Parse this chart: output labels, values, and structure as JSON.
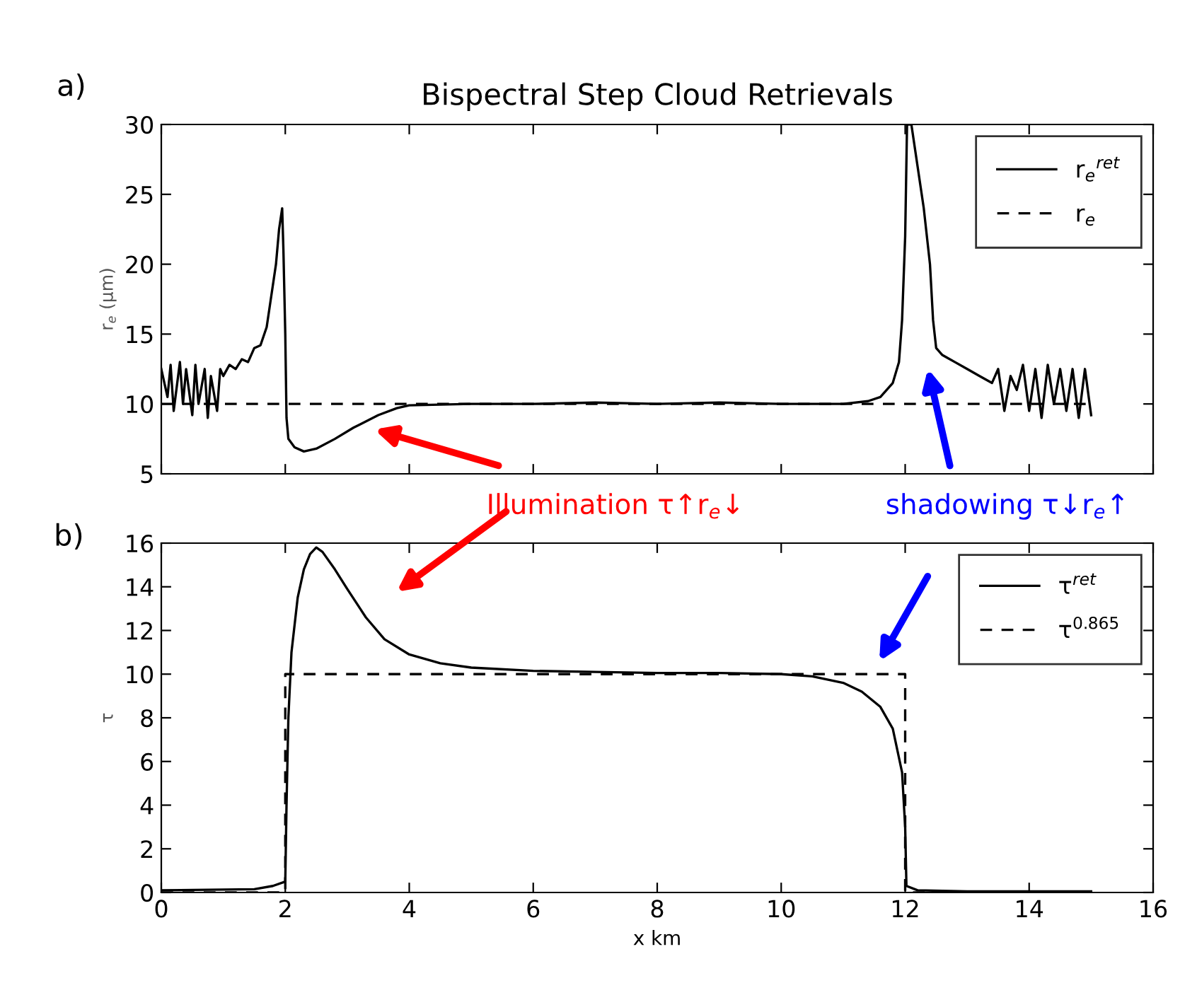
{
  "chart_data": [
    {
      "type": "line",
      "title": "Bispectral Step Cloud Retrievals",
      "ylabel": "r$_{e}$ (μm)",
      "annotations": [
        "a)",
        "Illumination τ↑r$_{e}$↓",
        "shadowing τ↓r$_{e}$↑"
      ],
      "series": [
        {
          "name": "r$_{e}$$^{ret}$",
          "color": "#000000",
          "line_style": "solid",
          "x": [
            0,
            0.1,
            0.15,
            0.2,
            0.3,
            0.35,
            0.4,
            0.5,
            0.55,
            0.6,
            0.7,
            0.75,
            0.8,
            0.9,
            0.95,
            1.0,
            1.1,
            1.2,
            1.3,
            1.4,
            1.5,
            1.6,
            1.7,
            1.75,
            1.8,
            1.85,
            1.9,
            1.95,
            1.97,
            2.0,
            2.02,
            2.05,
            2.15,
            2.3,
            2.5,
            2.8,
            3.1,
            3.5,
            3.8,
            4.0,
            5,
            6,
            7,
            8,
            9,
            10,
            11,
            11.4,
            11.6,
            11.8,
            11.9,
            11.95,
            12.0,
            12.03,
            12.1,
            12.2,
            12.3,
            12.4,
            12.45,
            12.5,
            12.6,
            12.8,
            13.0,
            13.2,
            13.4,
            13.5,
            13.6,
            13.7,
            13.8,
            13.9,
            14.0,
            14.1,
            14.2,
            14.3,
            14.4,
            14.5,
            14.6,
            14.7,
            14.8,
            14.9,
            15.0
          ],
          "values": [
            12.5,
            10.5,
            12.8,
            9.5,
            13,
            10,
            12.5,
            9.2,
            12.8,
            10,
            12.5,
            9,
            12,
            9.5,
            12.5,
            12,
            12.8,
            12.5,
            13.2,
            13,
            14,
            14.2,
            15.5,
            17,
            18.5,
            20,
            22.5,
            24,
            21,
            15,
            9,
            7.5,
            6.9,
            6.6,
            6.8,
            7.5,
            8.3,
            9.2,
            9.7,
            9.9,
            10.0,
            10,
            10.1,
            10,
            10.1,
            10,
            10.0,
            10.2,
            10.5,
            11.5,
            13,
            16,
            22,
            30,
            30,
            27,
            24,
            20,
            16,
            14,
            13.5,
            13,
            12.5,
            12,
            11.5,
            12.5,
            9.5,
            12,
            11,
            12.8,
            9.5,
            12.5,
            9,
            12.8,
            10,
            12.5,
            9.5,
            12.5,
            9,
            12.5,
            9.2
          ]
        },
        {
          "name": "r$_{e}$",
          "color": "#000000",
          "line_style": "dashed",
          "x": [
            0,
            15
          ],
          "values": [
            10,
            10
          ]
        }
      ],
      "xlim": [
        0,
        16
      ],
      "xticks": [
        0,
        2,
        4,
        6,
        8,
        10,
        12,
        14,
        16
      ],
      "ylim": [
        5,
        30
      ],
      "yticks": [
        5,
        10,
        15,
        20,
        25,
        30
      ],
      "tick_labels": "y",
      "legend": "top right",
      "grid": false,
      "marker": "none"
    },
    {
      "type": "line",
      "xlabel": "x km",
      "ylabel": "τ",
      "annotations": [
        "b)"
      ],
      "series": [
        {
          "name": "τ$^{ret}$",
          "color": "#000000",
          "line_style": "solid",
          "x": [
            0,
            1.5,
            1.8,
            2.0,
            2.02,
            2.05,
            2.1,
            2.2,
            2.3,
            2.4,
            2.5,
            2.6,
            2.8,
            3.0,
            3.3,
            3.6,
            4.0,
            4.5,
            5,
            6,
            7,
            8,
            9,
            10,
            10.5,
            11,
            11.3,
            11.6,
            11.8,
            11.95,
            12.0,
            12.02,
            12.2,
            13,
            15
          ],
          "values": [
            0.1,
            0.15,
            0.3,
            0.5,
            4,
            8,
            11,
            13.5,
            14.8,
            15.5,
            15.8,
            15.6,
            14.8,
            13.9,
            12.6,
            11.6,
            10.9,
            10.5,
            10.3,
            10.15,
            10.1,
            10.05,
            10.05,
            10,
            9.9,
            9.6,
            9.2,
            8.5,
            7.5,
            5.5,
            3,
            0.3,
            0.1,
            0.05,
            0.05
          ]
        },
        {
          "name": "τ$^{0.865}$",
          "color": "#000000",
          "line_style": "dashed",
          "x": [
            0,
            2,
            2,
            12,
            12,
            15
          ],
          "values": [
            0,
            0,
            10,
            10,
            0,
            0
          ]
        }
      ],
      "xlim": [
        0,
        16
      ],
      "xticks": [
        0,
        2,
        4,
        6,
        8,
        10,
        12,
        14,
        16
      ],
      "ylim": [
        0,
        16
      ],
      "yticks": [
        0,
        2,
        4,
        6,
        8,
        10,
        12,
        14,
        16
      ],
      "legend": "top right",
      "grid": false,
      "marker": "none"
    }
  ]
}
